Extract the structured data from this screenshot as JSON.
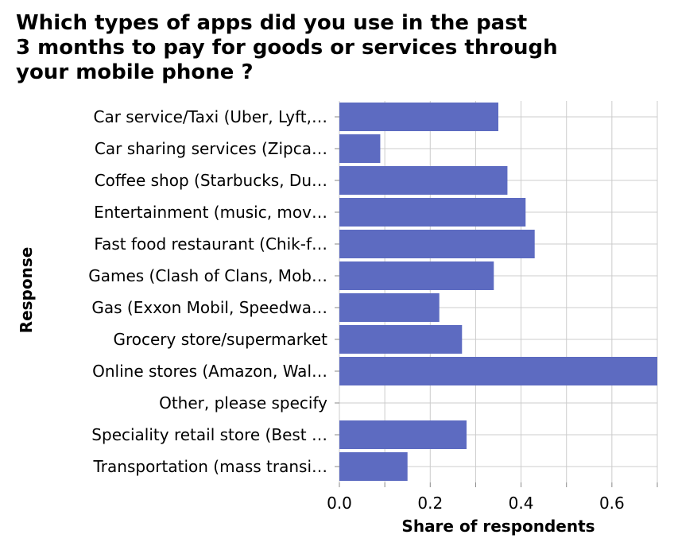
{
  "chart_data": {
    "type": "bar",
    "orientation": "horizontal",
    "title_lines": [
      "Which types of apps did you use in the past",
      "3 months to pay for goods or services through",
      "your mobile phone ?"
    ],
    "xlabel": "Share of respondents",
    "ylabel": "Response",
    "categories": [
      "Car service/Taxi (Uber, Lyft,…",
      "Car sharing services (Zipca…",
      "Coffee shop (Starbucks, Du…",
      "Entertainment (music, mov…",
      "Fast food restaurant (Chik-f…",
      "Games (Clash of Clans, Mob…",
      "Gas (Exxon Mobil, Speedwa…",
      "Grocery store/supermarket",
      "Online stores (Amazon, Wal…",
      "Other, please specify",
      "Speciality retail store (Best …",
      "Transportation (mass transi…"
    ],
    "values": [
      0.35,
      0.09,
      0.37,
      0.41,
      0.43,
      0.34,
      0.22,
      0.27,
      0.7,
      0.0,
      0.28,
      0.15
    ],
    "xlim": [
      0,
      0.7
    ],
    "xticks": [
      0.0,
      0.2,
      0.4,
      0.6
    ],
    "xtick_labels": [
      "0.0",
      "0.2",
      "0.4",
      "0.6"
    ],
    "grid": true,
    "bar_color": "#5d6bc1",
    "grid_color": "#cccccc"
  }
}
